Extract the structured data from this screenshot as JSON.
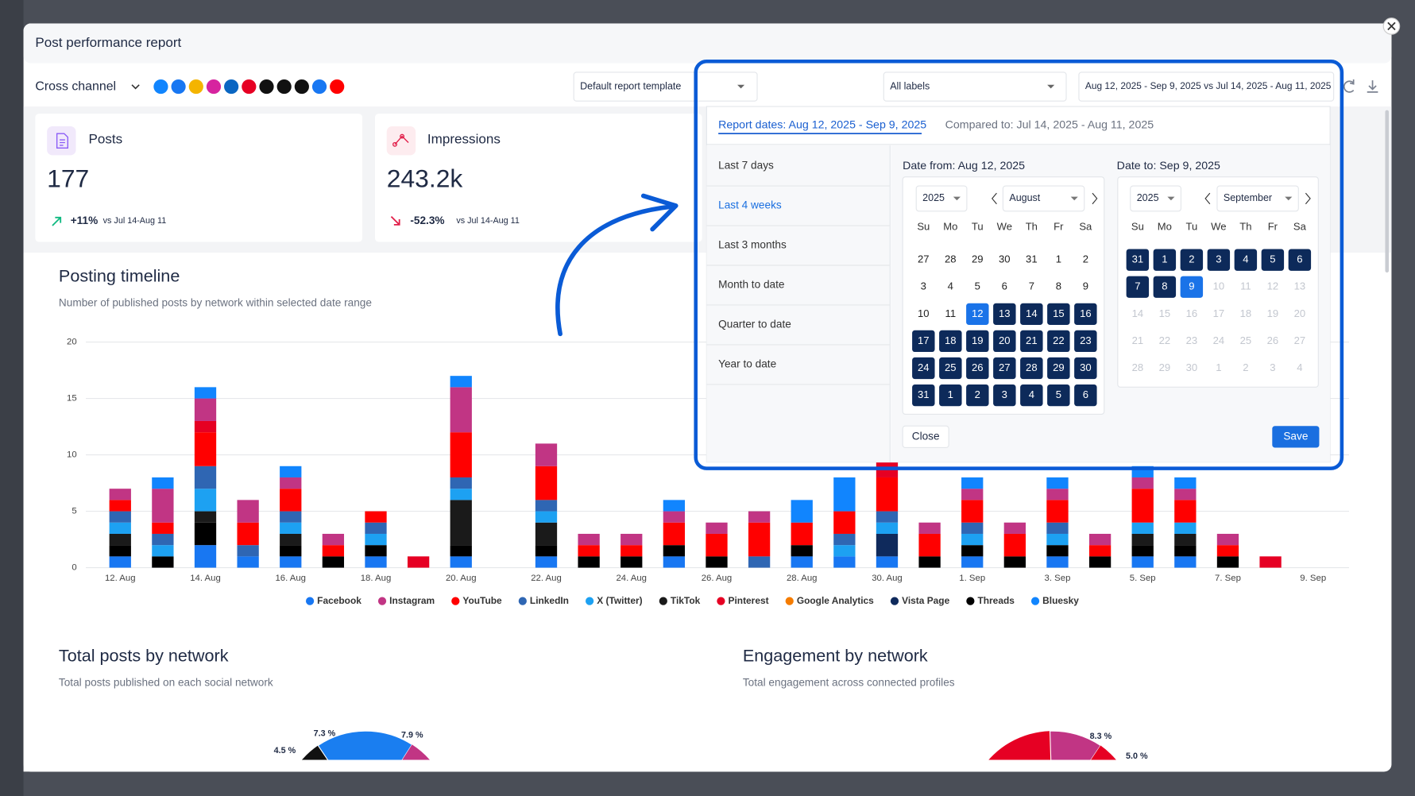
{
  "header": {
    "title": "Post performance report"
  },
  "toolbar": {
    "channel": "Cross channel",
    "template": "Default report template",
    "labels": "All labels",
    "date_range": "Aug 12, 2025 - Sep 9, 2025 vs Jul 14, 2025 - Aug 11, 2025"
  },
  "cards": [
    {
      "title": "Posts",
      "value": "177",
      "change": "+11%",
      "comparison": "vs Jul 14-Aug 11"
    },
    {
      "title": "Impressions",
      "value": "243.2k",
      "change": "-52.3%",
      "comparison": "vs Jul 14-Aug 11"
    }
  ],
  "chart_data": {
    "type": "bar",
    "stacked": true,
    "title": "Posting timeline",
    "subtitle": "Number of published posts by network within selected date range",
    "categories": [
      "12. Aug",
      null,
      "14. Aug",
      null,
      "16. Aug",
      null,
      "18. Aug",
      null,
      "20. Aug",
      null,
      "22. Aug",
      null,
      "24. Aug",
      null,
      "26. Aug",
      null,
      "28. Aug",
      null,
      "30. Aug",
      null,
      "1. Sep",
      null,
      "3. Sep",
      null,
      "5. Sep",
      null,
      "7. Sep",
      null,
      "9. Sep"
    ],
    "series": [
      {
        "name": "Facebook",
        "color": "#1877f2",
        "values": [
          1,
          0,
          2,
          1,
          1,
          0,
          1,
          0,
          1,
          0,
          1,
          0,
          0,
          1,
          0,
          0,
          1,
          1,
          1,
          0,
          1,
          0,
          1,
          0,
          1,
          1,
          0,
          0,
          0
        ]
      },
      {
        "name": "Instagram",
        "color": "#c13584",
        "values": [
          1,
          3,
          2,
          2,
          1,
          1,
          0,
          0,
          4,
          0,
          2,
          1,
          1,
          1,
          1,
          1,
          0,
          0,
          1,
          1,
          1,
          1,
          1,
          1,
          1,
          1,
          1,
          0,
          0
        ]
      },
      {
        "name": "YouTube",
        "color": "#ff0000",
        "values": [
          1,
          1,
          3,
          2,
          2,
          1,
          1,
          0,
          4,
          0,
          3,
          1,
          1,
          2,
          2,
          3,
          2,
          2,
          3,
          2,
          2,
          2,
          2,
          1,
          3,
          2,
          1,
          0,
          0
        ]
      },
      {
        "name": "LinkedIn",
        "color": "#2f66b3",
        "values": [
          1,
          1,
          2,
          1,
          1,
          0,
          1,
          0,
          1,
          0,
          1,
          0,
          0,
          0,
          0,
          1,
          0,
          1,
          1,
          0,
          1,
          0,
          1,
          0,
          0,
          0,
          0,
          0,
          0
        ]
      },
      {
        "name": "X (Twitter)",
        "color": "#1da1f2",
        "values": [
          1,
          1,
          2,
          0,
          1,
          0,
          1,
          0,
          1,
          0,
          1,
          0,
          0,
          0,
          0,
          0,
          0,
          1,
          1,
          0,
          1,
          0,
          1,
          0,
          1,
          1,
          0,
          0,
          0
        ]
      },
      {
        "name": "TikTok",
        "color": "#1a1a1a",
        "values": [
          1,
          0,
          1,
          0,
          1,
          0,
          0,
          0,
          4,
          0,
          2,
          0,
          0,
          0,
          0,
          0,
          0,
          0,
          0,
          0,
          0,
          0,
          0,
          0,
          1,
          1,
          0,
          0,
          0
        ]
      },
      {
        "name": "Pinterest",
        "color": "#e60023",
        "values": [
          0,
          0,
          1,
          0,
          0,
          0,
          0,
          1,
          0,
          0,
          0,
          0,
          0,
          0,
          0,
          0,
          0,
          0,
          2,
          0,
          0,
          0,
          0,
          0,
          0,
          0,
          0,
          1,
          0
        ]
      },
      {
        "name": "Google Analytics",
        "color": "#f57c00",
        "values": [
          0,
          0,
          0,
          0,
          0,
          0,
          0,
          0,
          0,
          0,
          0,
          0,
          0,
          0,
          0,
          0,
          0,
          0,
          0,
          0,
          0,
          0,
          0,
          0,
          0,
          0,
          0,
          0,
          0
        ]
      },
      {
        "name": "Vista Page",
        "color": "#0f2a5c",
        "values": [
          0,
          0,
          0,
          0,
          0,
          0,
          0,
          0,
          0,
          0,
          0,
          0,
          0,
          0,
          0,
          0,
          0,
          0,
          2,
          0,
          0,
          0,
          0,
          0,
          0,
          0,
          0,
          0,
          0
        ]
      },
      {
        "name": "Threads",
        "color": "#000000",
        "values": [
          1,
          1,
          2,
          0,
          1,
          1,
          1,
          0,
          1,
          0,
          1,
          1,
          1,
          1,
          1,
          0,
          1,
          0,
          0,
          1,
          1,
          1,
          1,
          1,
          1,
          1,
          1,
          0,
          0
        ]
      },
      {
        "name": "Bluesky",
        "color": "#1185fe",
        "values": [
          0,
          1,
          1,
          0,
          1,
          0,
          0,
          0,
          1,
          0,
          0,
          0,
          0,
          1,
          0,
          0,
          2,
          3,
          0,
          0,
          1,
          0,
          1,
          0,
          1,
          1,
          0,
          0,
          0
        ]
      }
    ],
    "ylim": [
      0,
      20
    ],
    "yticks": [
      0,
      5,
      10,
      15,
      20
    ],
    "grid": true
  },
  "sections": [
    {
      "title": "Total posts by network",
      "subtitle": "Total posts published on each social network",
      "slice_labels": [
        "7.3 %",
        "7.9 %",
        "4.5 %"
      ]
    },
    {
      "title": "Engagement by network",
      "subtitle": "Total engagement across connected profiles",
      "slice_labels": [
        "8.3 %",
        "5.0 %"
      ]
    }
  ],
  "date_picker": {
    "report_dates": "Report dates: Aug 12, 2025 - Sep 9, 2025",
    "compared_to": "Compared to: Jul 14, 2025 - Aug 11, 2025",
    "presets": [
      "Last 7 days",
      "Last 4 weeks",
      "Last 3 months",
      "Month to date",
      "Quarter to date",
      "Year to date"
    ],
    "weekdays": [
      "Su",
      "Mo",
      "Tu",
      "We",
      "Th",
      "Fr",
      "Sa"
    ],
    "from": {
      "label": "Date from: Aug 12, 2025",
      "year": "2025",
      "month": "August",
      "weeks": [
        [
          27,
          28,
          29,
          30,
          31,
          1,
          2
        ],
        [
          3,
          4,
          5,
          6,
          7,
          8,
          9
        ],
        [
          10,
          11,
          12,
          13,
          14,
          15,
          16
        ],
        [
          17,
          18,
          19,
          20,
          21,
          22,
          23
        ],
        [
          24,
          25,
          26,
          27,
          28,
          29,
          30
        ],
        [
          31,
          1,
          2,
          3,
          4,
          5,
          6
        ]
      ]
    },
    "to": {
      "label": "Date to: Sep 9, 2025",
      "year": "2025",
      "month": "September",
      "weeks": [
        [
          31,
          1,
          2,
          3,
          4,
          5,
          6
        ],
        [
          7,
          8,
          9,
          10,
          11,
          12,
          13
        ],
        [
          14,
          15,
          16,
          17,
          18,
          19,
          20
        ],
        [
          21,
          22,
          23,
          24,
          25,
          26,
          27
        ],
        [
          28,
          29,
          30,
          1,
          2,
          3,
          4
        ]
      ]
    },
    "close": "Close",
    "save": "Save"
  }
}
